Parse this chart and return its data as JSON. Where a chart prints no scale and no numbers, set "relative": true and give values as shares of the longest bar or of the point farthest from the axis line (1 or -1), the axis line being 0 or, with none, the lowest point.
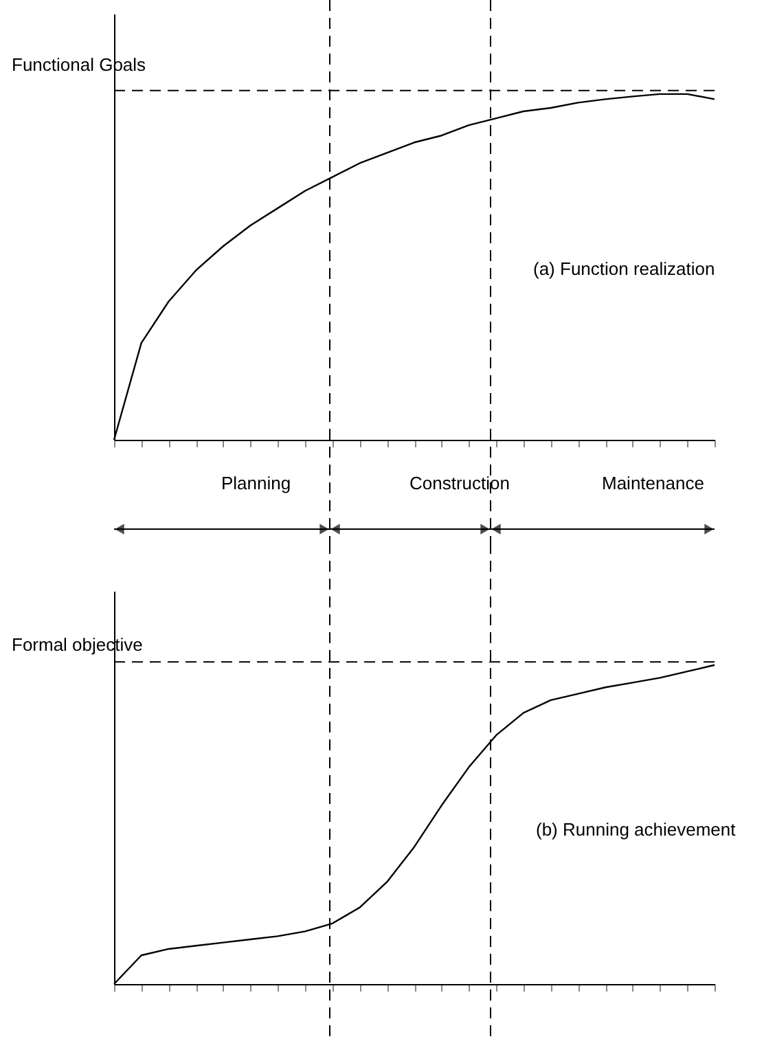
{
  "chart_data": [
    {
      "type": "line",
      "relative": true,
      "ylabel": "Functional Goals",
      "marker": "none",
      "line_style": "solid",
      "legend": false,
      "categories": [
        null,
        null,
        null,
        null,
        null,
        null,
        null,
        null,
        null,
        null,
        null,
        null,
        null,
        null,
        null,
        null,
        null,
        null,
        null,
        null,
        null,
        null,
        null
      ],
      "series": [
        {
          "color": "#000000",
          "values": [
            0,
            0.28,
            0.4,
            0.49,
            0.56,
            0.62,
            0.67,
            0.72,
            0.76,
            0.8,
            0.83,
            0.86,
            0.88,
            0.91,
            0.93,
            0.95,
            0.96,
            0.975,
            0.985,
            0.993,
            1.0,
            1.0,
            0.985
          ]
        }
      ],
      "ref_lines": [
        {
          "axis": "y",
          "value": 1.01,
          "color": "#000000",
          "line_style": "dashed"
        }
      ],
      "annotations": [
        "Planning",
        "Construction",
        "Maintenance",
        "(a) Function realization"
      ]
    },
    {
      "type": "line",
      "relative": true,
      "ylabel": "Formal objective",
      "marker": "none",
      "line_style": "solid",
      "legend": false,
      "categories": [
        null,
        null,
        null,
        null,
        null,
        null,
        null,
        null,
        null,
        null,
        null,
        null,
        null,
        null,
        null,
        null,
        null,
        null,
        null,
        null,
        null,
        null,
        null
      ],
      "series": [
        {
          "color": "#000000",
          "values": [
            0,
            0.09,
            0.11,
            0.12,
            0.13,
            0.14,
            0.15,
            0.165,
            0.19,
            0.24,
            0.32,
            0.43,
            0.56,
            0.68,
            0.78,
            0.85,
            0.89,
            0.91,
            0.93,
            0.945,
            0.96,
            0.98,
            1.0
          ]
        }
      ],
      "ref_lines": [
        {
          "axis": "y",
          "value": 1.01,
          "color": "#000000",
          "line_style": "dashed"
        }
      ],
      "annotations": [
        "(b) Running achievement"
      ]
    }
  ]
}
